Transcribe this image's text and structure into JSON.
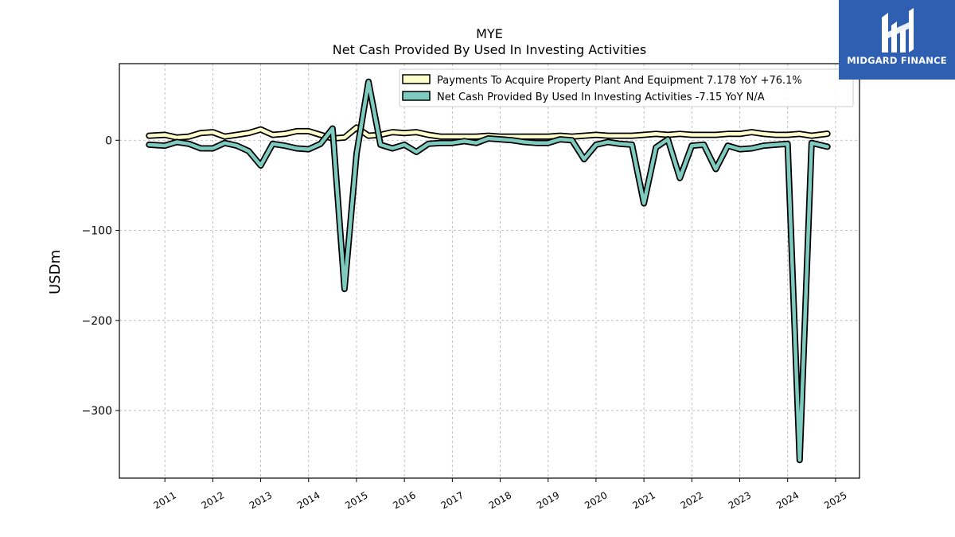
{
  "chart_data": {
    "type": "line",
    "title": "MYE",
    "subtitle": "Net Cash Provided By Used In Investing Activities",
    "xlabel": "",
    "ylabel": "USDm",
    "ylim": [
      -375,
      85
    ],
    "xlim": [
      2010.05,
      2025.5
    ],
    "yticks": [
      0,
      -100,
      -200,
      -300
    ],
    "ytick_labels": [
      "0",
      "−100",
      "−200",
      "−300"
    ],
    "xticks": [
      2011,
      2012,
      2013,
      2014,
      2015,
      2016,
      2017,
      2018,
      2019,
      2020,
      2021,
      2022,
      2023,
      2024,
      2025
    ],
    "xtick_labels": [
      "2011",
      "2012",
      "2013",
      "2014",
      "2015",
      "2016",
      "2017",
      "2018",
      "2019",
      "2020",
      "2021",
      "2022",
      "2023",
      "2024",
      "2025"
    ],
    "grid": true,
    "legend_position": "top-right",
    "series": [
      {
        "name": "Payments To Acquire Property Plant And Equipment  7.178 YoY +76.1%",
        "color": "#ffffcc",
        "x": [
          2010.67,
          2011.0,
          2011.25,
          2011.5,
          2011.75,
          2012.0,
          2012.25,
          2012.5,
          2012.75,
          2013.0,
          2013.25,
          2013.5,
          2013.75,
          2014.0,
          2014.25,
          2014.5,
          2014.75,
          2015.0,
          2015.25,
          2015.5,
          2015.75,
          2016.0,
          2016.25,
          2016.5,
          2016.75,
          2017.0,
          2017.25,
          2017.5,
          2017.75,
          2018.0,
          2018.25,
          2018.5,
          2018.75,
          2019.0,
          2019.25,
          2019.5,
          2019.75,
          2020.0,
          2020.25,
          2020.5,
          2020.75,
          2021.0,
          2021.25,
          2021.5,
          2021.75,
          2022.0,
          2022.25,
          2022.5,
          2022.75,
          2023.0,
          2023.25,
          2023.5,
          2023.75,
          2024.0,
          2024.25,
          2024.5,
          2024.83
        ],
        "values": [
          5,
          6,
          3,
          4,
          8,
          9,
          4,
          6,
          8,
          12,
          6,
          7,
          10,
          10,
          6,
          2,
          3,
          14,
          5,
          6,
          9,
          8,
          9,
          6,
          4,
          4,
          4,
          4,
          5,
          4,
          4,
          4,
          4,
          4,
          5,
          4,
          5,
          6,
          5,
          5,
          5,
          6,
          7,
          6,
          7,
          6,
          6,
          6,
          7,
          7,
          9,
          7,
          6,
          6,
          7,
          5,
          7.178
        ]
      },
      {
        "name": "Net Cash Provided By Used In Investing Activities  -7.15 YoY N/A",
        "color": "#80cbc0",
        "x": [
          2010.67,
          2011.0,
          2011.25,
          2011.5,
          2011.75,
          2012.0,
          2012.25,
          2012.5,
          2012.75,
          2013.0,
          2013.25,
          2013.5,
          2013.75,
          2014.0,
          2014.25,
          2014.5,
          2014.75,
          2015.0,
          2015.25,
          2015.5,
          2015.75,
          2016.0,
          2016.25,
          2016.5,
          2016.75,
          2017.0,
          2017.25,
          2017.5,
          2017.75,
          2018.0,
          2018.25,
          2018.5,
          2018.75,
          2019.0,
          2019.25,
          2019.5,
          2019.75,
          2020.0,
          2020.25,
          2020.5,
          2020.75,
          2021.0,
          2021.25,
          2021.5,
          2021.75,
          2022.0,
          2022.25,
          2022.5,
          2022.75,
          2023.0,
          2023.25,
          2023.5,
          2023.75,
          2024.0,
          2024.25,
          2024.5,
          2024.83
        ],
        "values": [
          -5,
          -6,
          -2,
          -4,
          -9,
          -9,
          -3,
          -6,
          -12,
          -28,
          -4,
          -6,
          -9,
          -10,
          -4,
          13,
          -165,
          -15,
          65,
          -5,
          -9,
          -5,
          -13,
          -4,
          -3,
          -3,
          -1,
          -3,
          2,
          1,
          0,
          -2,
          -3,
          -3,
          1,
          0,
          -21,
          -5,
          -2,
          -4,
          -5,
          -70,
          -8,
          1,
          -42,
          -6,
          -5,
          -32,
          -6,
          -10,
          -9,
          -6,
          -5,
          -4,
          -355,
          -3,
          -7.15
        ]
      }
    ]
  },
  "logo": {
    "text": "MIDGARD FINANCE",
    "color": "#2f5fb0"
  }
}
